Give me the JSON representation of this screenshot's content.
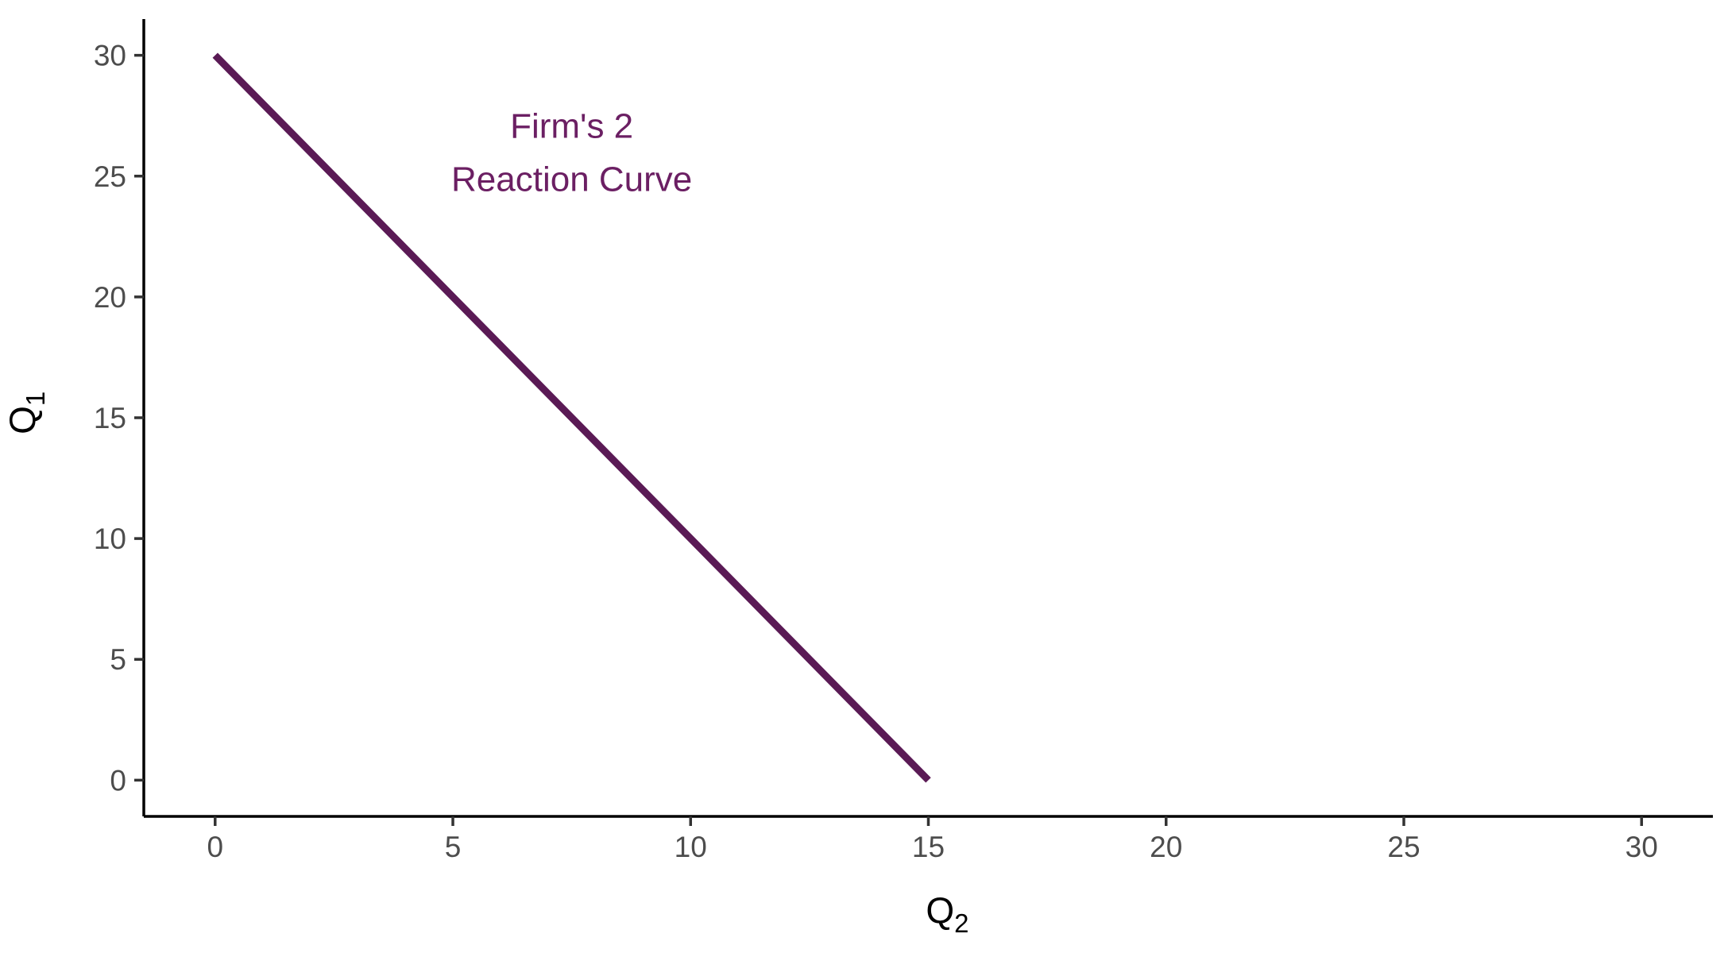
{
  "chart_data": {
    "type": "line",
    "title": "",
    "xlabel": {
      "main": "Q",
      "sub": "2"
    },
    "ylabel": {
      "main": "Q",
      "sub": "1"
    },
    "xlim": [
      -1.5,
      31.5
    ],
    "ylim": [
      -1.5,
      31.5
    ],
    "x_ticks": [
      0,
      5,
      10,
      15,
      20,
      25,
      30
    ],
    "y_ticks": [
      0,
      5,
      10,
      15,
      20,
      25,
      30
    ],
    "grid": false,
    "series": [
      {
        "color": "#5a1a55",
        "points": [
          {
            "x": 0,
            "y": 30
          },
          {
            "x": 15,
            "y": 0
          }
        ]
      }
    ],
    "annotations": [
      {
        "lines": [
          "Firm's 2",
          "Reaction Curve"
        ],
        "x": 7.5,
        "y": 25,
        "color": "#6b1f63"
      }
    ]
  }
}
